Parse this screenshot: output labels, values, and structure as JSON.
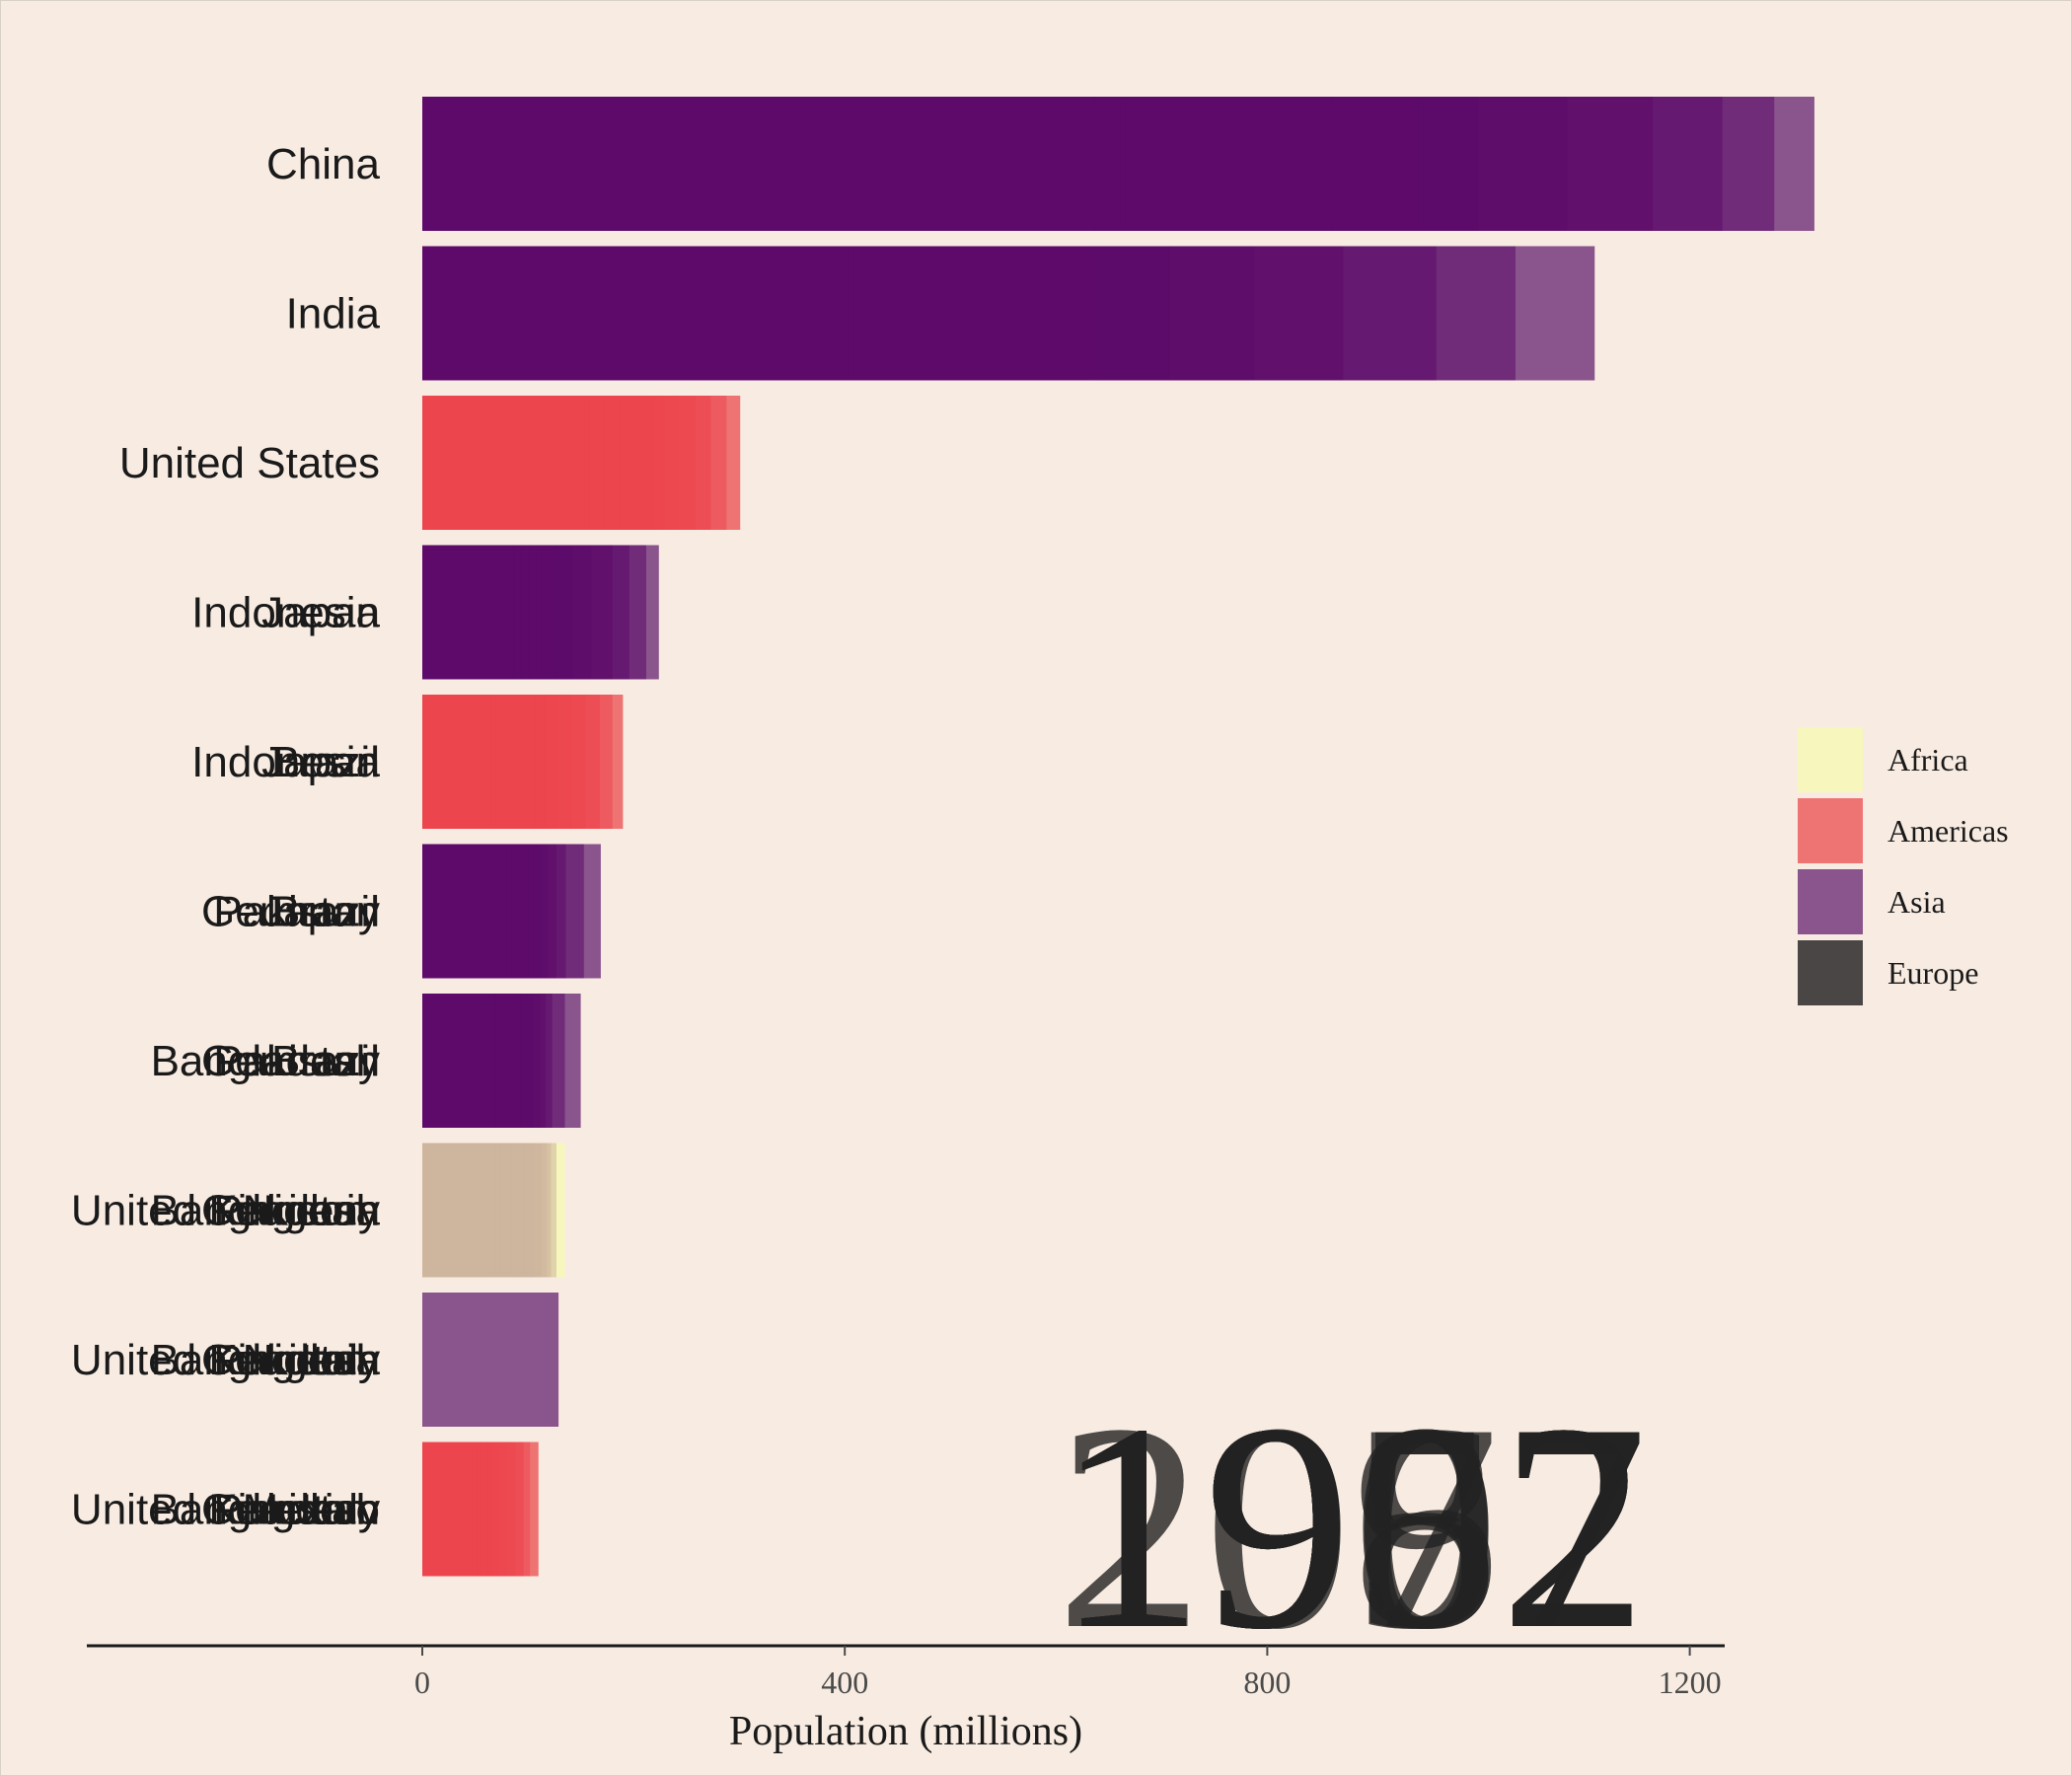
{
  "chart_data": {
    "type": "bar",
    "orientation": "horizontal",
    "xlabel": "Population (millions)",
    "xlim": [
      0,
      1480
    ],
    "xticks": [
      0,
      400,
      800,
      1200
    ],
    "legend": {
      "placement": "right",
      "entries": [
        {
          "name": "Africa",
          "color": "#f7f6bd"
        },
        {
          "name": "Americas",
          "color": "#ee7373"
        },
        {
          "name": "Asia",
          "color": "#8a548c"
        },
        {
          "name": "Europe",
          "color": "#4a4646"
        }
      ]
    },
    "years": [
      "1952",
      "1957",
      "1962",
      "1967",
      "1972",
      "1977",
      "1982",
      "1987",
      "1992",
      "1997",
      "2002",
      "2007"
    ],
    "ranks": [
      {
        "labels": [
          "China"
        ],
        "values": [
          1318,
          1280,
          1231,
          1165,
          1084,
          1000,
          943,
          862,
          754,
          666,
          637,
          556
        ],
        "color": "#5d0b6a",
        "tip_color": "#8a548c"
      },
      {
        "labels": [
          "India"
        ],
        "values": [
          1110,
          1035,
          960,
          872,
          788,
          708,
          634,
          567,
          507,
          454,
          409,
          372
        ],
        "color": "#5d0b6a",
        "tip_color": "#8a548c"
      },
      {
        "labels": [
          "United States"
        ],
        "values": [
          301,
          288,
          273,
          259,
          242,
          229,
          220,
          210,
          199,
          186,
          172,
          158
        ],
        "color": "#ec464e",
        "tip_color": "#ee7373"
      },
      {
        "labels": [
          "Indonesia",
          "Japan"
        ],
        "values": [
          224,
          212,
          196,
          180,
          160,
          142,
          127,
          113,
          100,
          93,
          87,
          86
        ],
        "color": "#5d0b6a",
        "tip_color": "#8a548c"
      },
      {
        "labels": [
          "Indonesia",
          "Japan",
          "Brazil"
        ],
        "values": [
          190,
          180,
          168,
          155,
          141,
          128,
          118,
          107,
          98,
          88,
          76,
          65
        ],
        "color": "#ec464e",
        "tip_color": "#ee7373"
      },
      {
        "labels": [
          "Germany",
          "Pakistan",
          "Japan",
          "Brazil"
        ],
        "values": [
          169,
          153,
          136,
          127,
          119,
          113,
          109,
          105,
          100,
          91,
          80,
          71
        ],
        "color": "#5d0b6a",
        "tip_color": "#8a548c"
      },
      {
        "labels": [
          "Bangladesh",
          "Germany",
          "Pakistan",
          "Brazil"
        ],
        "values": [
          150,
          135,
          123,
          117,
          112,
          105,
          93,
          84,
          78,
          73,
          70,
          69
        ],
        "color": "#5d0b6a",
        "tip_color": "#8a548c"
      },
      {
        "labels": [
          "United Kingdom",
          "Bangladesh",
          "Germany",
          "Pakistan",
          "Nigeria"
        ],
        "values": [
          135,
          127,
          122,
          118,
          113,
          106,
          96,
          85,
          78,
          74,
          72,
          70
        ],
        "color": "#cdb49d",
        "tip_color": "#f7f6bd"
      },
      {
        "labels": [
          "United Kingdom",
          "Bangladesh",
          "Germany",
          "Pakistan",
          "Nigeria",
          "Italy"
        ],
        "values": [
          129,
          125,
          120,
          113,
          107,
          102,
          96,
          90,
          83,
          76,
          71,
          67
        ],
        "color": "#8a548c",
        "tip_color": "#8a548c"
      },
      {
        "labels": [
          "United Kingdom",
          "Bangladesh",
          "Germany",
          "Pakistan",
          "Mexico",
          "Italy"
        ],
        "values": [
          110,
          102,
          96,
          88,
          80,
          72,
          67,
          62,
          57,
          55,
          52,
          50
        ],
        "color": "#ec464e",
        "tip_color": "#ee7373"
      }
    ]
  }
}
